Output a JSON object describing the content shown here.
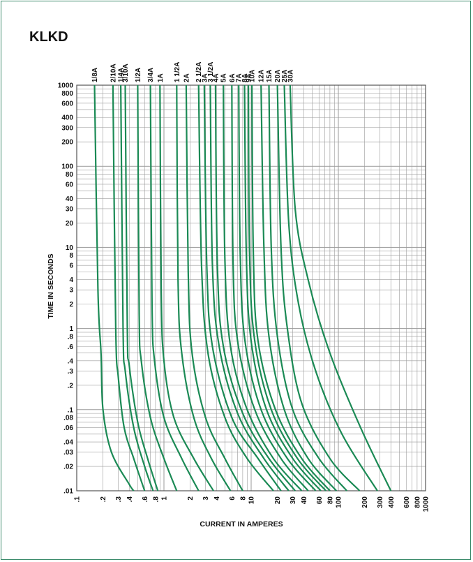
{
  "chart_data": {
    "type": "line",
    "title": "KLKD",
    "xlabel": "CURRENT IN AMPERES",
    "ylabel": "TIME IN SECONDS",
    "x_scale": "log",
    "y_scale": "log",
    "xlim": [
      0.1,
      1000
    ],
    "ylim": [
      0.01,
      1000
    ],
    "grid": true,
    "line_color": "#1b8a55",
    "x_ticks": [
      ".1",
      ".2",
      ".3",
      ".4",
      ".6",
      ".8",
      "1",
      "2",
      "3",
      "4",
      "6",
      "8",
      "10",
      "20",
      "30",
      "40",
      "60",
      "80",
      "100",
      "200",
      "300",
      "400",
      "600",
      "800",
      "1000"
    ],
    "y_ticks": [
      "1000",
      "800",
      "600",
      "400",
      "300",
      "200",
      "100",
      "80",
      "60",
      "40",
      "30",
      "20",
      "10",
      "8",
      "6",
      "4",
      "3",
      "2",
      "1",
      ".8",
      ".6",
      ".4",
      ".3",
      ".2",
      ".1",
      ".08",
      ".06",
      ".04",
      ".03",
      ".02",
      ".01"
    ],
    "series": [
      {
        "name": "1/8A",
        "points": [
          [
            0.16,
            1000
          ],
          [
            0.175,
            3
          ],
          [
            0.19,
            0.5
          ],
          [
            0.2,
            0.1
          ],
          [
            0.25,
            0.03
          ],
          [
            0.4,
            0.012
          ],
          [
            0.45,
            0.01
          ]
        ]
      },
      {
        "name": "2/10A",
        "points": [
          [
            0.26,
            1000
          ],
          [
            0.28,
            1
          ],
          [
            0.3,
            0.25
          ],
          [
            0.35,
            0.06
          ],
          [
            0.45,
            0.025
          ],
          [
            0.6,
            0.01
          ]
        ]
      },
      {
        "name": "1/4A",
        "points": [
          [
            0.32,
            1000
          ],
          [
            0.34,
            1
          ],
          [
            0.36,
            0.3
          ],
          [
            0.45,
            0.06
          ],
          [
            0.6,
            0.02
          ],
          [
            0.75,
            0.01
          ]
        ]
      },
      {
        "name": "3/10A",
        "points": [
          [
            0.36,
            1000
          ],
          [
            0.38,
            1
          ],
          [
            0.4,
            0.35
          ],
          [
            0.5,
            0.07
          ],
          [
            0.65,
            0.025
          ],
          [
            0.85,
            0.01
          ]
        ]
      },
      {
        "name": "1/2A",
        "points": [
          [
            0.5,
            1000
          ],
          [
            0.52,
            1.5
          ],
          [
            0.55,
            0.4
          ],
          [
            0.7,
            0.08
          ],
          [
            1.0,
            0.025
          ],
          [
            1.4,
            0.01
          ]
        ]
      },
      {
        "name": "3/4A",
        "points": [
          [
            0.7,
            1000
          ],
          [
            0.73,
            2
          ],
          [
            0.78,
            0.4
          ],
          [
            1.0,
            0.08
          ],
          [
            1.6,
            0.025
          ],
          [
            2.5,
            0.01
          ]
        ]
      },
      {
        "name": "1A",
        "points": [
          [
            0.9,
            1000
          ],
          [
            0.93,
            3
          ],
          [
            1.0,
            0.4
          ],
          [
            1.3,
            0.08
          ],
          [
            2.2,
            0.025
          ],
          [
            3.7,
            0.01
          ]
        ]
      },
      {
        "name": "1 1/2A",
        "points": [
          [
            1.4,
            1000
          ],
          [
            1.45,
            4
          ],
          [
            1.6,
            0.5
          ],
          [
            2.2,
            0.08
          ],
          [
            3.5,
            0.025
          ],
          [
            5.8,
            0.01
          ]
        ]
      },
      {
        "name": "2A",
        "points": [
          [
            1.8,
            1000
          ],
          [
            1.9,
            5
          ],
          [
            2.1,
            0.5
          ],
          [
            3.0,
            0.08
          ],
          [
            5.0,
            0.025
          ],
          [
            8.0,
            0.01
          ]
        ]
      },
      {
        "name": "2 1/2A",
        "points": [
          [
            2.5,
            1000
          ],
          [
            2.7,
            6
          ],
          [
            3.2,
            0.5
          ],
          [
            5.0,
            0.08
          ],
          [
            9.0,
            0.025
          ],
          [
            18,
            0.01
          ]
        ]
      },
      {
        "name": "3A",
        "points": [
          [
            2.9,
            1000
          ],
          [
            3.1,
            6
          ],
          [
            3.6,
            0.6
          ],
          [
            6.0,
            0.08
          ],
          [
            12,
            0.025
          ],
          [
            22,
            0.01
          ]
        ]
      },
      {
        "name": "3 1/2A",
        "points": [
          [
            3.4,
            1000
          ],
          [
            3.6,
            6
          ],
          [
            4.3,
            0.6
          ],
          [
            7.0,
            0.09
          ],
          [
            14,
            0.025
          ],
          [
            27,
            0.01
          ]
        ]
      },
      {
        "name": "4A",
        "points": [
          [
            3.9,
            1000
          ],
          [
            4.1,
            6
          ],
          [
            4.8,
            0.6
          ],
          [
            8.0,
            0.09
          ],
          [
            16,
            0.025
          ],
          [
            32,
            0.01
          ]
        ]
      },
      {
        "name": "5A",
        "points": [
          [
            4.8,
            1000
          ],
          [
            5.0,
            7
          ],
          [
            5.8,
            0.6
          ],
          [
            9.0,
            0.1
          ],
          [
            18,
            0.025
          ],
          [
            38,
            0.01
          ]
        ]
      },
      {
        "name": "6A",
        "points": [
          [
            6.0,
            1000
          ],
          [
            6.2,
            7
          ],
          [
            7.0,
            0.7
          ],
          [
            11,
            0.1
          ],
          [
            22,
            0.025
          ],
          [
            45,
            0.01
          ]
        ]
      },
      {
        "name": "7A",
        "points": [
          [
            7.2,
            1000
          ],
          [
            7.5,
            8
          ],
          [
            8.5,
            0.7
          ],
          [
            13,
            0.1
          ],
          [
            26,
            0.025
          ],
          [
            55,
            0.01
          ]
        ]
      },
      {
        "name": "8A",
        "points": [
          [
            8.4,
            1000
          ],
          [
            8.8,
            8
          ],
          [
            10,
            0.7
          ],
          [
            15,
            0.1
          ],
          [
            30,
            0.025
          ],
          [
            63,
            0.01
          ]
        ]
      },
      {
        "name": "9A",
        "points": [
          [
            9.3,
            1000
          ],
          [
            9.6,
            8
          ],
          [
            11,
            0.7
          ],
          [
            17,
            0.1
          ],
          [
            34,
            0.025
          ],
          [
            72,
            0.01
          ]
        ]
      },
      {
        "name": "10A",
        "points": [
          [
            10.2,
            1000
          ],
          [
            10.6,
            8
          ],
          [
            12,
            0.7
          ],
          [
            19,
            0.1
          ],
          [
            38,
            0.025
          ],
          [
            80,
            0.01
          ]
        ]
      },
      {
        "name": "12A",
        "points": [
          [
            13,
            1000
          ],
          [
            14,
            10
          ],
          [
            16,
            0.8
          ],
          [
            24,
            0.1
          ],
          [
            45,
            0.025
          ],
          [
            95,
            0.01
          ]
        ]
      },
      {
        "name": "15A",
        "points": [
          [
            16,
            1000
          ],
          [
            17,
            10
          ],
          [
            20,
            0.8
          ],
          [
            30,
            0.1
          ],
          [
            60,
            0.025
          ],
          [
            125,
            0.01
          ]
        ]
      },
      {
        "name": "20A",
        "points": [
          [
            20,
            1000
          ],
          [
            22,
            10
          ],
          [
            26,
            1
          ],
          [
            38,
            0.12
          ],
          [
            80,
            0.025
          ],
          [
            175,
            0.01
          ]
        ]
      },
      {
        "name": "25A",
        "points": [
          [
            24,
            1000
          ],
          [
            27,
            20
          ],
          [
            35,
            2
          ],
          [
            55,
            0.3
          ],
          [
            110,
            0.05
          ],
          [
            280,
            0.01
          ]
        ]
      },
      {
        "name": "30A",
        "points": [
          [
            28,
            1000
          ],
          [
            32,
            30
          ],
          [
            45,
            4
          ],
          [
            80,
            0.5
          ],
          [
            180,
            0.06
          ],
          [
            400,
            0.01
          ]
        ]
      }
    ]
  }
}
